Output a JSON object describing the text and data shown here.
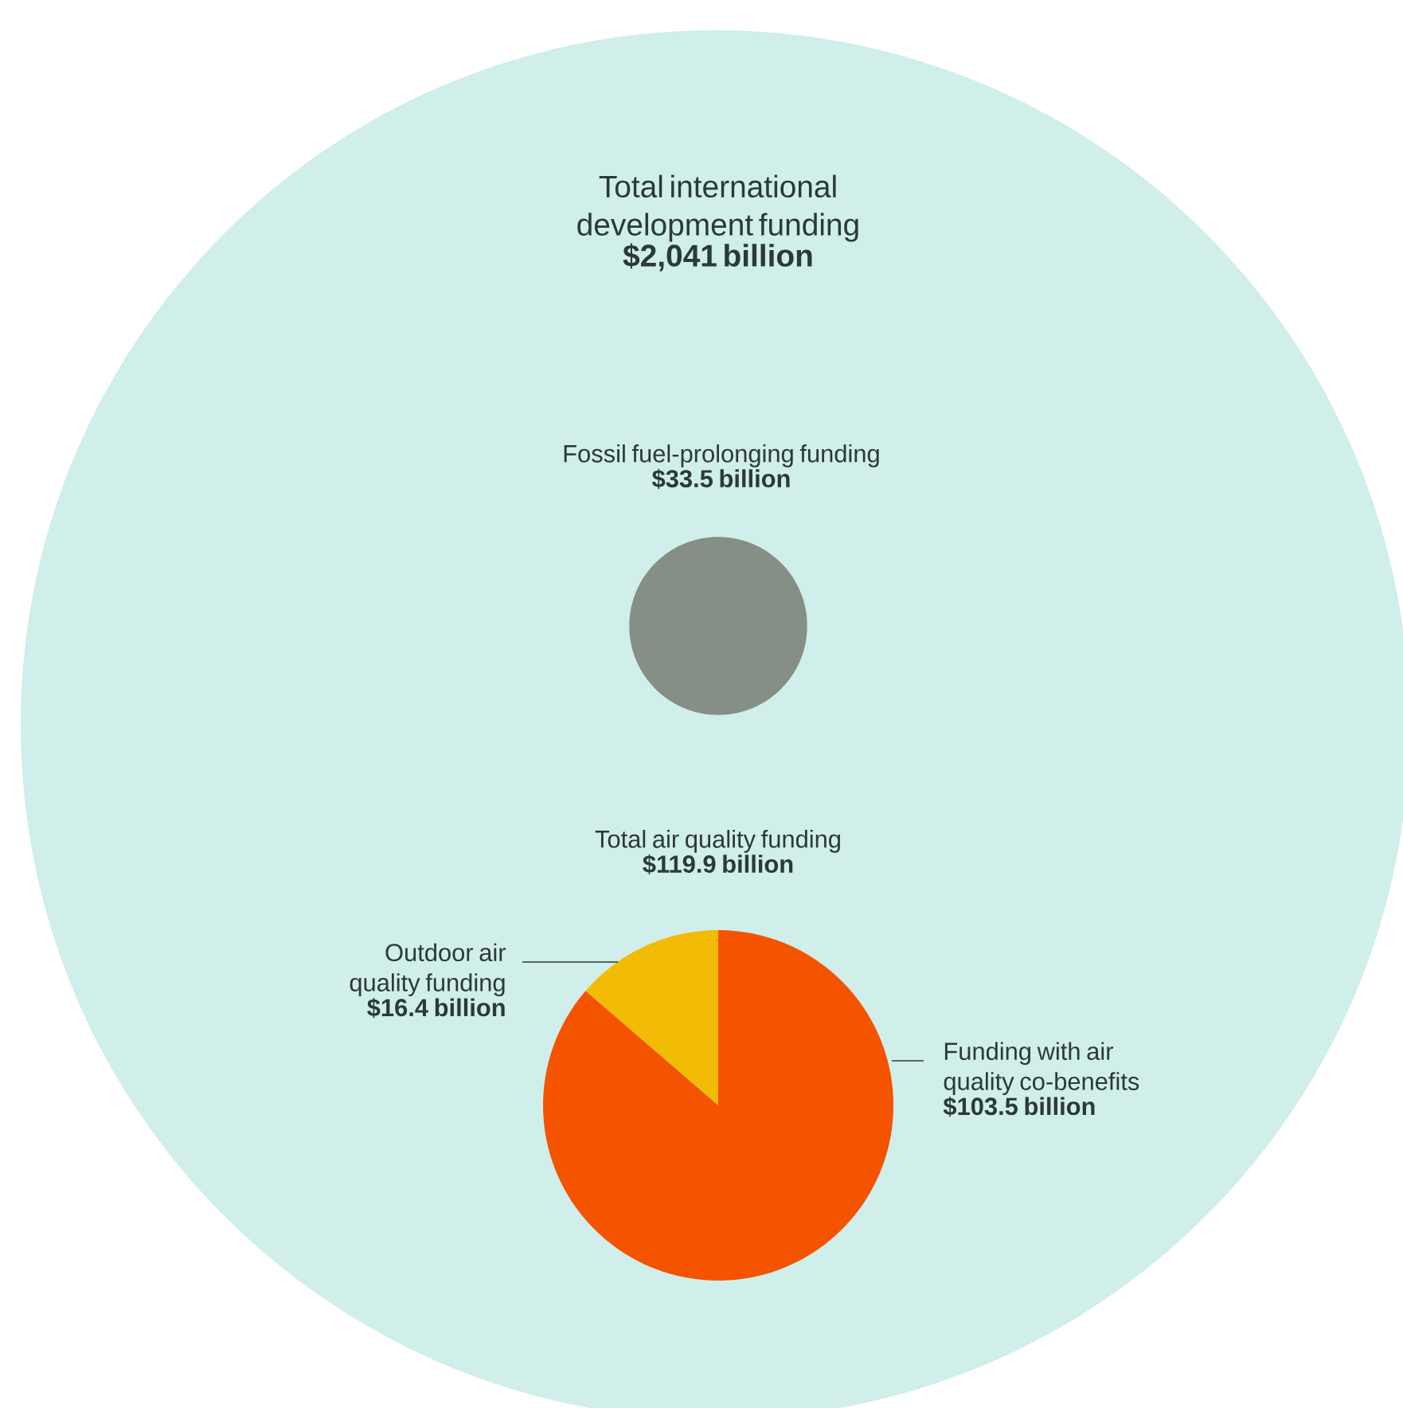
{
  "chart_data": [
    {
      "type": "other",
      "title": "Total international development funding",
      "values": [
        2041
      ],
      "value_labels": [
        "$2,041 billion"
      ],
      "color": "#d0eeea"
    },
    {
      "type": "other",
      "title": "Fossil fuel-prolonging funding",
      "values": [
        33.5
      ],
      "value_labels": [
        "$33.5 billion"
      ],
      "color": "#858f85"
    },
    {
      "type": "pie",
      "title": "Total air quality funding",
      "subtitle": "$119.9 billion",
      "categories": [
        "Outdoor air quality funding",
        "Funding with air quality co-benefits"
      ],
      "values": [
        16.4,
        103.5
      ],
      "colors": [
        "#f2bb05",
        "#f45300"
      ],
      "value_labels": [
        "$16.4 billion",
        "$103.5 billion"
      ]
    }
  ]
}
